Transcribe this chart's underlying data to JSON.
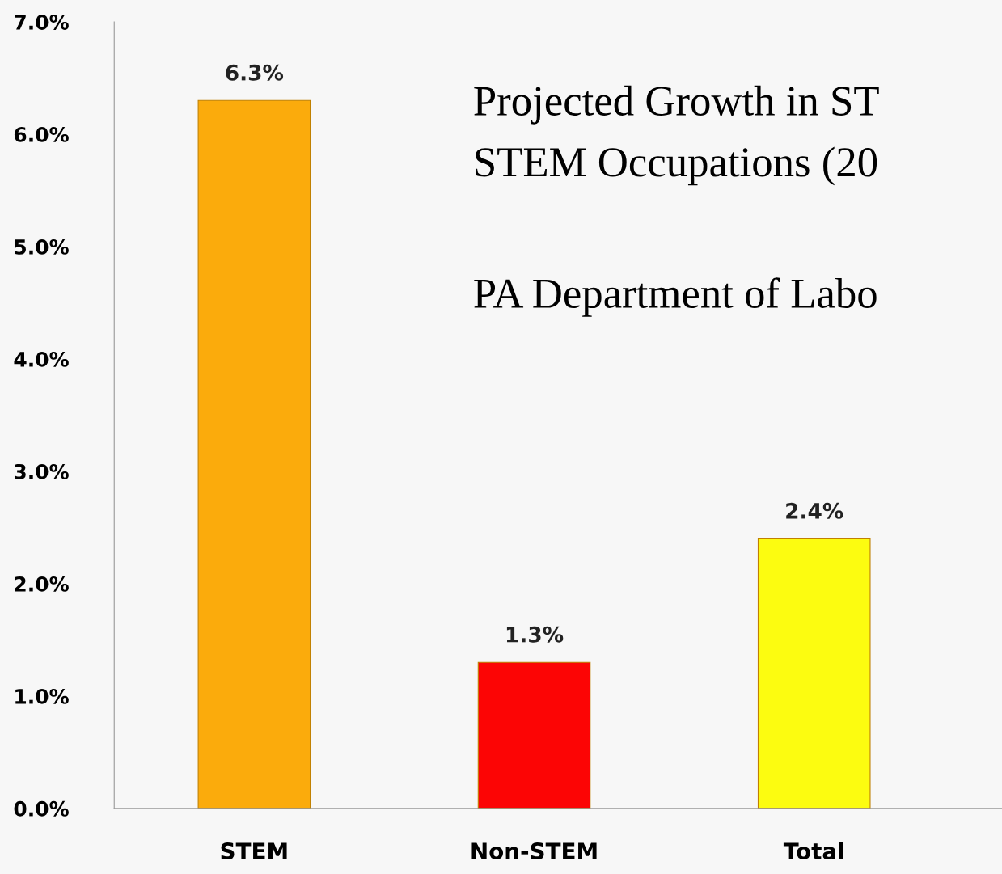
{
  "chart_data": {
    "type": "bar",
    "categories": [
      "STEM",
      "Non-STEM",
      "Total"
    ],
    "values": [
      6.3,
      1.3,
      2.4
    ],
    "colors": [
      "#fbab0c",
      "#fc0505",
      "#fcfc10"
    ],
    "value_labels": [
      "6.3%",
      "1.3%",
      "2.4%"
    ],
    "ylim": [
      0,
      7
    ],
    "yticks": [
      {
        "value": 0,
        "label": "0.0%"
      },
      {
        "value": 1,
        "label": "1.0%"
      },
      {
        "value": 2,
        "label": "2.0%"
      },
      {
        "value": 3,
        "label": "3.0%"
      },
      {
        "value": 4,
        "label": "4.0%"
      },
      {
        "value": 5,
        "label": "5.0%"
      },
      {
        "value": 6,
        "label": "6.0%"
      },
      {
        "value": 7,
        "label": "7.0%"
      }
    ],
    "annotations": [
      "Projected Growth in ST",
      "STEM Occupations (20",
      "PA Department of Labo"
    ],
    "grid": false,
    "legend": false
  }
}
